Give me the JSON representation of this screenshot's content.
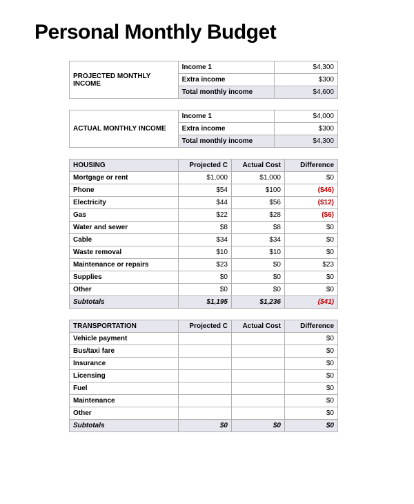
{
  "title": "Personal Monthly Budget",
  "colors": {
    "background": "#ffffff",
    "text": "#000000",
    "border": "#b0b0b0",
    "shade": "#e6e6ef",
    "negative": "#c00000"
  },
  "projected_income": {
    "label": "PROJECTED MONTHLY INCOME",
    "rows": [
      {
        "label": "Income 1",
        "value": "$4,300"
      },
      {
        "label": "Extra income",
        "value": "$300"
      }
    ],
    "total_label": "Total monthly income",
    "total_value": "$4,600"
  },
  "actual_income": {
    "label": "ACTUAL MONTHLY INCOME",
    "rows": [
      {
        "label": "Income 1",
        "value": "$4,000"
      },
      {
        "label": "Extra income",
        "value": "$300"
      }
    ],
    "total_label": "Total monthly income",
    "total_value": "$4,300"
  },
  "column_headers": {
    "projected": "Projected C",
    "actual": "Actual Cost",
    "difference": "Difference"
  },
  "housing": {
    "title": "HOUSING",
    "rows": [
      {
        "item": "Mortgage or rent",
        "projected": "$1,000",
        "actual": "$1,000",
        "diff": "$0",
        "neg": false
      },
      {
        "item": "Phone",
        "projected": "$54",
        "actual": "$100",
        "diff": "($46)",
        "neg": true
      },
      {
        "item": "Electricity",
        "projected": "$44",
        "actual": "$56",
        "diff": "($12)",
        "neg": true
      },
      {
        "item": "Gas",
        "projected": "$22",
        "actual": "$28",
        "diff": "($6)",
        "neg": true
      },
      {
        "item": "Water and sewer",
        "projected": "$8",
        "actual": "$8",
        "diff": "$0",
        "neg": false
      },
      {
        "item": "Cable",
        "projected": "$34",
        "actual": "$34",
        "diff": "$0",
        "neg": false
      },
      {
        "item": "Waste removal",
        "projected": "$10",
        "actual": "$10",
        "diff": "$0",
        "neg": false
      },
      {
        "item": "Maintenance or repairs",
        "projected": "$23",
        "actual": "$0",
        "diff": "$23",
        "neg": false
      },
      {
        "item": "Supplies",
        "projected": "$0",
        "actual": "$0",
        "diff": "$0",
        "neg": false
      },
      {
        "item": "Other",
        "projected": "$0",
        "actual": "$0",
        "diff": "$0",
        "neg": false
      }
    ],
    "subtotal": {
      "label": "Subtotals",
      "projected": "$1,195",
      "actual": "$1,236",
      "diff": "($41)",
      "neg": true
    }
  },
  "transportation": {
    "title": "TRANSPORTATION",
    "rows": [
      {
        "item": "Vehicle payment",
        "projected": "",
        "actual": "",
        "diff": "$0",
        "neg": false
      },
      {
        "item": "Bus/taxi fare",
        "projected": "",
        "actual": "",
        "diff": "$0",
        "neg": false
      },
      {
        "item": "Insurance",
        "projected": "",
        "actual": "",
        "diff": "$0",
        "neg": false
      },
      {
        "item": "Licensing",
        "projected": "",
        "actual": "",
        "diff": "$0",
        "neg": false
      },
      {
        "item": "Fuel",
        "projected": "",
        "actual": "",
        "diff": "$0",
        "neg": false
      },
      {
        "item": "Maintenance",
        "projected": "",
        "actual": "",
        "diff": "$0",
        "neg": false
      },
      {
        "item": "Other",
        "projected": "",
        "actual": "",
        "diff": "$0",
        "neg": false
      }
    ],
    "subtotal": {
      "label": "Subtotals",
      "projected": "$0",
      "actual": "$0",
      "diff": "$0",
      "neg": false
    }
  }
}
